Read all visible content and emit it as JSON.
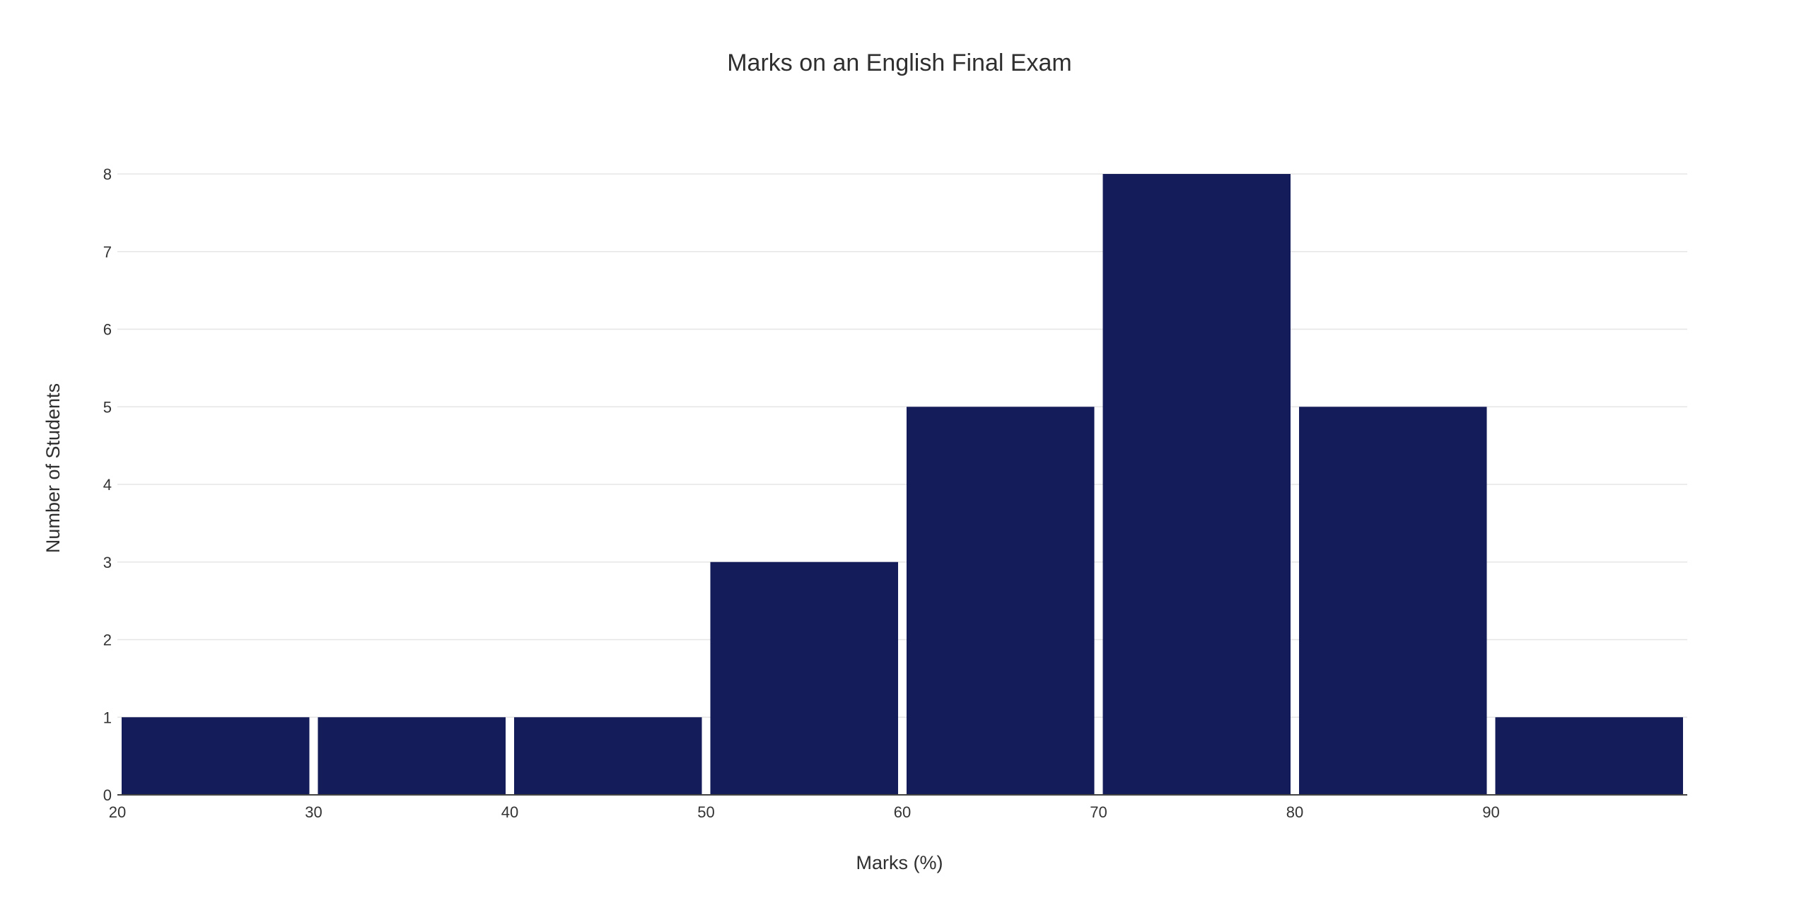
{
  "chart_data": {
    "type": "bar",
    "title": "Marks on an English Final Exam",
    "xlabel": "Marks (%)",
    "ylabel": "Number of Students",
    "bin_edges": [
      20,
      30,
      40,
      50,
      60,
      70,
      80,
      90,
      100
    ],
    "values": [
      1,
      1,
      1,
      3,
      5,
      8,
      5,
      1
    ],
    "x_ticks": [
      20,
      30,
      40,
      50,
      60,
      70,
      80,
      90
    ],
    "y_ticks": [
      0,
      1,
      2,
      3,
      4,
      5,
      6,
      7,
      8
    ],
    "xlim": [
      20,
      100
    ],
    "ylim": [
      0,
      8
    ],
    "grid": true,
    "legend": "none",
    "colors": {
      "bar": "#151c5a",
      "grid": "#e6e6e6",
      "axis": "#444444"
    }
  }
}
